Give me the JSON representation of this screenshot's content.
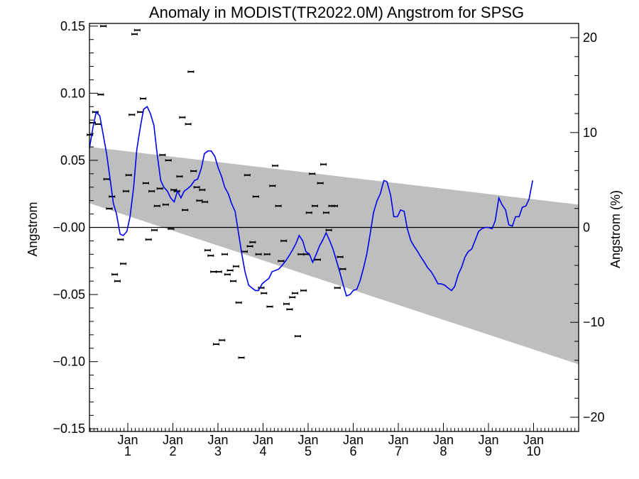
{
  "chart_data": {
    "type": "line",
    "title": "Anomaly in MODIST(TR2022.0M) Angstrom for SPSG",
    "ylabel": "Angstrom",
    "ylabel_right": "Angstrom (%)",
    "xlabel": "",
    "ylim": [
      -0.152,
      0.152
    ],
    "ylim_right": [
      -21.5,
      21.5
    ],
    "xlim": [
      0,
      10.85
    ],
    "grid": false,
    "legend": "none",
    "y_ticks": [
      -0.15,
      -0.1,
      -0.05,
      0.0,
      0.05,
      0.1,
      0.15
    ],
    "y_tick_labels": [
      "−0.15",
      "−0.10",
      "−0.05",
      "−0.00",
      "0.05",
      "0.10",
      "0.15"
    ],
    "y_right_ticks": [
      -20,
      -10,
      0,
      10,
      20
    ],
    "y_right_tick_labels": [
      "−20",
      "−10",
      "0",
      "10",
      "20"
    ],
    "x_ticks": [
      {
        "x": 0.85,
        "month": "Jan",
        "year": "1"
      },
      {
        "x": 1.85,
        "month": "Jan",
        "year": "2"
      },
      {
        "x": 2.85,
        "month": "Jan",
        "year": "3"
      },
      {
        "x": 3.85,
        "month": "Jan",
        "year": "4"
      },
      {
        "x": 4.85,
        "month": "Jan",
        "year": "5"
      },
      {
        "x": 5.85,
        "month": "Jan",
        "year": "6"
      },
      {
        "x": 6.85,
        "month": "Jan",
        "year": "7"
      },
      {
        "x": 7.85,
        "month": "Jan",
        "year": "8"
      },
      {
        "x": 8.85,
        "month": "Jan",
        "year": "9"
      },
      {
        "x": 9.85,
        "month": "Jan",
        "year": "10"
      }
    ],
    "band": {
      "upper": [
        [
          0,
          0.06
        ],
        [
          10.85,
          0.017
        ]
      ],
      "lower": [
        [
          0,
          0.018
        ],
        [
          10.85,
          -0.102
        ]
      ],
      "color": "#bebebe"
    },
    "zero_line": 0.0,
    "series": [
      {
        "kind": "smoothed",
        "color": "#0000ee",
        "points": [
          [
            0.0,
            0.059
          ],
          [
            0.08,
            0.075
          ],
          [
            0.15,
            0.086
          ],
          [
            0.23,
            0.083
          ],
          [
            0.3,
            0.07
          ],
          [
            0.38,
            0.055
          ],
          [
            0.45,
            0.038
          ],
          [
            0.53,
            0.018
          ],
          [
            0.6,
            0.01
          ],
          [
            0.68,
            -0.005
          ],
          [
            0.75,
            -0.006
          ],
          [
            0.83,
            -0.003
          ],
          [
            0.9,
            0.008
          ],
          [
            0.98,
            0.03
          ],
          [
            1.05,
            0.058
          ],
          [
            1.13,
            0.075
          ],
          [
            1.2,
            0.088
          ],
          [
            1.28,
            0.09
          ],
          [
            1.35,
            0.085
          ],
          [
            1.43,
            0.076
          ],
          [
            1.5,
            0.055
          ],
          [
            1.58,
            0.035
          ],
          [
            1.65,
            0.03
          ],
          [
            1.73,
            0.027
          ],
          [
            1.8,
            0.022
          ],
          [
            1.88,
            0.019
          ],
          [
            1.95,
            0.027
          ],
          [
            2.03,
            0.022
          ],
          [
            2.1,
            0.027
          ],
          [
            2.18,
            0.029
          ],
          [
            2.25,
            0.031
          ],
          [
            2.33,
            0.035
          ],
          [
            2.4,
            0.036
          ],
          [
            2.48,
            0.044
          ],
          [
            2.55,
            0.055
          ],
          [
            2.63,
            0.057
          ],
          [
            2.7,
            0.057
          ],
          [
            2.78,
            0.053
          ],
          [
            2.85,
            0.045
          ],
          [
            2.93,
            0.038
          ],
          [
            3.0,
            0.03
          ],
          [
            3.08,
            0.025
          ],
          [
            3.15,
            0.018
          ],
          [
            3.23,
            0.012
          ],
          [
            3.3,
            -0.003
          ],
          [
            3.38,
            -0.02
          ],
          [
            3.45,
            -0.033
          ],
          [
            3.53,
            -0.043
          ],
          [
            3.6,
            -0.045
          ],
          [
            3.68,
            -0.047
          ],
          [
            3.75,
            -0.047
          ],
          [
            3.83,
            -0.042
          ],
          [
            3.9,
            -0.04
          ],
          [
            3.98,
            -0.038
          ],
          [
            4.05,
            -0.033
          ],
          [
            4.13,
            -0.032
          ],
          [
            4.2,
            -0.031
          ],
          [
            4.28,
            -0.028
          ],
          [
            4.35,
            -0.025
          ],
          [
            4.43,
            -0.021
          ],
          [
            4.5,
            -0.017
          ],
          [
            4.58,
            -0.012
          ],
          [
            4.65,
            -0.006
          ],
          [
            4.73,
            -0.01
          ],
          [
            4.8,
            -0.018
          ],
          [
            4.88,
            -0.02
          ],
          [
            4.95,
            -0.026
          ],
          [
            5.03,
            -0.02
          ],
          [
            5.1,
            -0.014
          ],
          [
            5.18,
            -0.009
          ],
          [
            5.25,
            -0.004
          ],
          [
            5.33,
            -0.01
          ],
          [
            5.4,
            -0.016
          ],
          [
            5.48,
            -0.025
          ],
          [
            5.55,
            -0.033
          ],
          [
            5.63,
            -0.043
          ],
          [
            5.7,
            -0.051
          ],
          [
            5.78,
            -0.05
          ],
          [
            5.85,
            -0.047
          ],
          [
            5.93,
            -0.046
          ],
          [
            6.0,
            -0.04
          ],
          [
            6.08,
            -0.03
          ],
          [
            6.15,
            -0.02
          ],
          [
            6.23,
            -0.004
          ],
          [
            6.3,
            0.011
          ],
          [
            6.38,
            0.02
          ],
          [
            6.45,
            0.025
          ],
          [
            6.53,
            0.035
          ],
          [
            6.6,
            0.034
          ],
          [
            6.68,
            0.024
          ],
          [
            6.75,
            0.008
          ],
          [
            6.83,
            0.008
          ],
          [
            6.9,
            0.013
          ],
          [
            6.98,
            0.012
          ],
          [
            7.05,
            -0.001
          ],
          [
            7.13,
            -0.01
          ],
          [
            7.2,
            -0.014
          ],
          [
            7.28,
            -0.018
          ],
          [
            7.35,
            -0.022
          ],
          [
            7.43,
            -0.026
          ],
          [
            7.5,
            -0.03
          ],
          [
            7.58,
            -0.033
          ],
          [
            7.65,
            -0.037
          ],
          [
            7.73,
            -0.042
          ],
          [
            7.8,
            -0.042
          ],
          [
            7.88,
            -0.043
          ],
          [
            7.95,
            -0.045
          ],
          [
            8.03,
            -0.047
          ],
          [
            8.1,
            -0.044
          ],
          [
            8.18,
            -0.035
          ],
          [
            8.25,
            -0.03
          ],
          [
            8.33,
            -0.022
          ],
          [
            8.4,
            -0.018
          ],
          [
            8.48,
            -0.016
          ],
          [
            8.55,
            -0.01
          ],
          [
            8.63,
            -0.003
          ],
          [
            8.7,
            -0.001
          ],
          [
            8.78,
            0.0
          ],
          [
            8.85,
            0.0
          ],
          [
            8.93,
            -0.001
          ],
          [
            9.0,
            0.005
          ],
          [
            9.08,
            0.022
          ],
          [
            9.15,
            0.017
          ],
          [
            9.23,
            0.013
          ],
          [
            9.3,
            0.002
          ],
          [
            9.38,
            0.001
          ],
          [
            9.45,
            0.008
          ],
          [
            9.53,
            0.008
          ],
          [
            9.6,
            0.015
          ],
          [
            9.68,
            0.016
          ],
          [
            9.75,
            0.021
          ],
          [
            9.83,
            0.035
          ]
        ]
      },
      {
        "kind": "monthly-points",
        "color": "#000000",
        "points": [
          [
            0.01,
            0.069
          ],
          [
            0.07,
            0.078
          ],
          [
            0.13,
            0.086
          ],
          [
            0.19,
            0.077
          ],
          [
            0.25,
            0.099
          ],
          [
            0.31,
            0.15
          ],
          [
            0.38,
            0.036
          ],
          [
            0.44,
            0.014
          ],
          [
            0.5,
            0.023
          ],
          [
            0.56,
            -0.035
          ],
          [
            0.62,
            -0.04
          ],
          [
            0.69,
            -0.009
          ],
          [
            0.75,
            -0.027
          ],
          [
            0.81,
            0.027
          ],
          [
            0.87,
            0.039
          ],
          [
            0.94,
            0.084
          ],
          [
            1.0,
            0.144
          ],
          [
            1.06,
            0.147
          ],
          [
            1.13,
            0.086
          ],
          [
            1.19,
            0.096
          ],
          [
            1.25,
            0.033
          ],
          [
            1.31,
            -0.009
          ],
          [
            1.38,
            0.027
          ],
          [
            1.44,
            -0.002
          ],
          [
            1.5,
            0.016
          ],
          [
            1.56,
            0.029
          ],
          [
            1.62,
            0.054
          ],
          [
            1.69,
            0.017
          ],
          [
            1.75,
            0.05
          ],
          [
            1.81,
            -0.001
          ],
          [
            1.87,
            0.028
          ],
          [
            1.94,
            0.027
          ],
          [
            2.0,
            0.038
          ],
          [
            2.06,
            0.082
          ],
          [
            2.12,
            0.013
          ],
          [
            2.19,
            0.077
          ],
          [
            2.25,
            0.116
          ],
          [
            2.31,
            0.042
          ],
          [
            2.38,
            0.03
          ],
          [
            2.44,
            0.02
          ],
          [
            2.5,
            0.028
          ],
          [
            2.56,
            0.019
          ],
          [
            2.62,
            -0.017
          ],
          [
            2.69,
            -0.021
          ],
          [
            2.75,
            -0.033
          ],
          [
            2.81,
            -0.087
          ],
          [
            2.87,
            -0.033
          ],
          [
            2.94,
            -0.084
          ],
          [
            3.0,
            -0.02
          ],
          [
            3.06,
            -0.035
          ],
          [
            3.12,
            -0.032
          ],
          [
            3.19,
            -0.04
          ],
          [
            3.25,
            -0.029
          ],
          [
            3.31,
            -0.056
          ],
          [
            3.37,
            -0.097
          ],
          [
            3.44,
            -0.018
          ],
          [
            3.5,
            0.039
          ],
          [
            3.56,
            -0.014
          ],
          [
            3.62,
            -0.011
          ],
          [
            3.69,
            0.023
          ],
          [
            3.75,
            -0.02
          ],
          [
            3.81,
            -0.045
          ],
          [
            3.87,
            -0.049
          ],
          [
            3.94,
            -0.02
          ],
          [
            4.0,
            -0.059
          ],
          [
            4.06,
            0.031
          ],
          [
            4.12,
            0.046
          ],
          [
            4.19,
            0.016
          ],
          [
            4.25,
            -0.025
          ],
          [
            4.31,
            -0.01
          ],
          [
            4.37,
            -0.057
          ],
          [
            4.44,
            -0.061
          ],
          [
            4.5,
            -0.052
          ],
          [
            4.56,
            -0.049
          ],
          [
            4.62,
            -0.081
          ],
          [
            4.69,
            -0.02
          ],
          [
            4.75,
            -0.047
          ],
          [
            4.81,
            -0.02
          ],
          [
            4.87,
            0.011
          ],
          [
            4.94,
            0.04
          ],
          [
            5.0,
            0.016
          ],
          [
            5.06,
            -0.024
          ],
          [
            5.12,
            0.033
          ],
          [
            5.19,
            0.047
          ],
          [
            5.25,
            0.011
          ],
          [
            5.31,
            -0.002
          ],
          [
            5.37,
            0.016
          ],
          [
            5.44,
            0.016
          ],
          [
            5.5,
            -0.045
          ],
          [
            5.56,
            -0.022
          ],
          [
            5.62,
            -0.031
          ]
        ]
      }
    ]
  }
}
